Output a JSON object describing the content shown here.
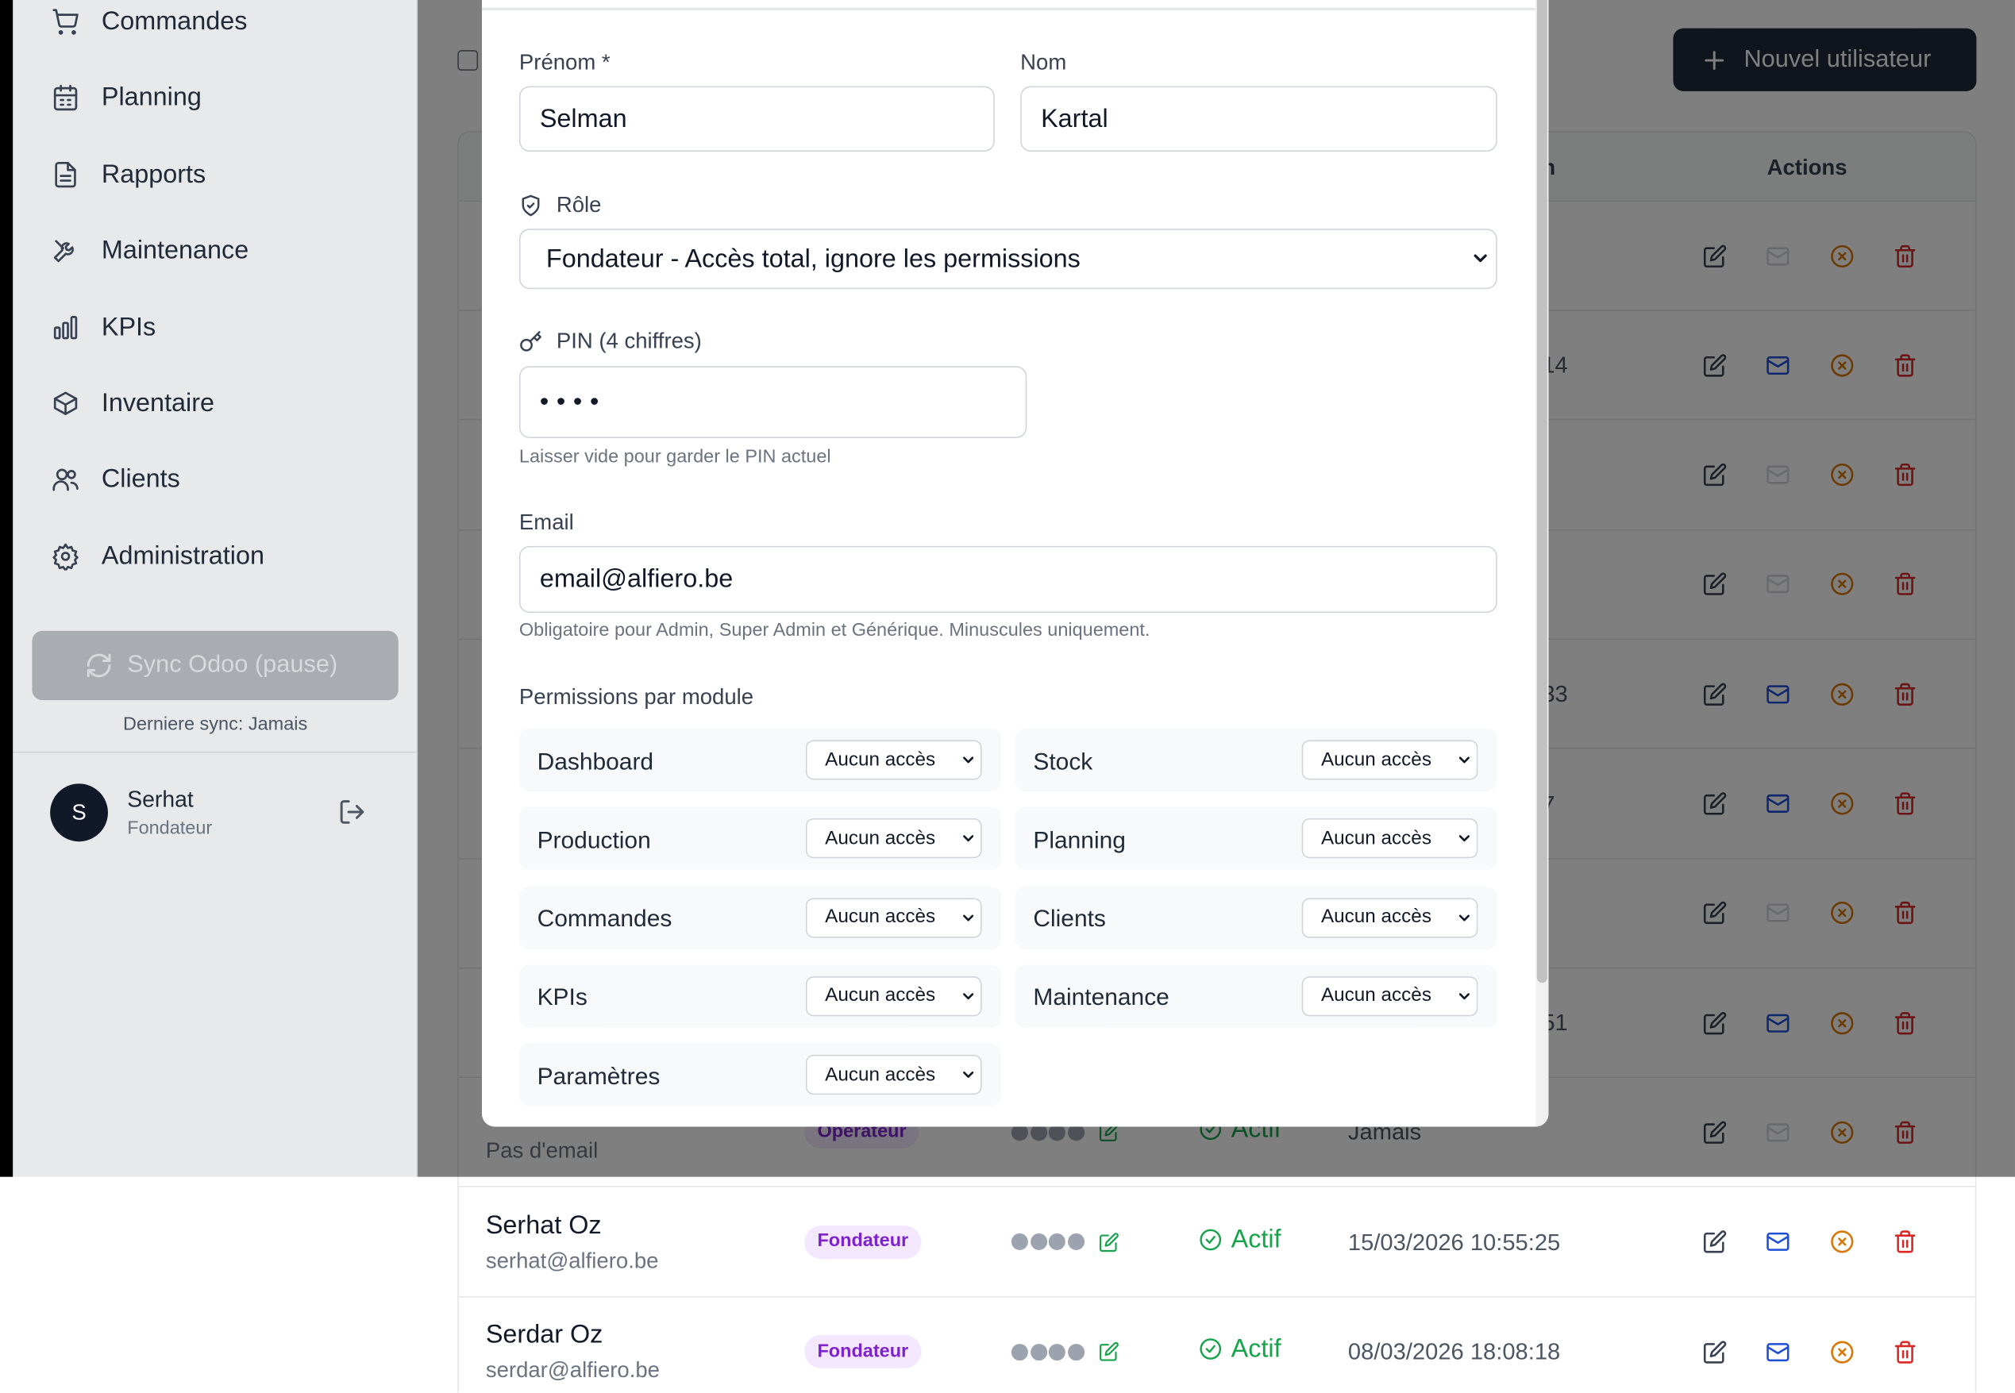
{
  "sidebar": {
    "nav": [
      "Commandes",
      "Planning",
      "Rapports",
      "Maintenance",
      "KPIs",
      "Inventaire",
      "Clients",
      "Administration"
    ],
    "sync_button": "Sync Odoo (pause)",
    "last_sync": "Derniere sync: Jamais",
    "user": {
      "initial": "S",
      "name": "Serhat",
      "role": "Fondateur"
    }
  },
  "toolbar": {
    "new_user_button": "Nouvel utilisateur"
  },
  "table": {
    "header_partial": "n",
    "actions_header": "Actions",
    "rows": [
      {},
      {
        "last_login": "14"
      },
      {},
      {},
      {
        "last_login": "33"
      },
      {
        "last_login": "7"
      },
      {},
      {
        "last_login": "51"
      },
      {
        "email": "Pas d'email",
        "role": "Opérateur",
        "status": "Actif",
        "last_login": "Jamais"
      },
      {
        "name": "Serhat Oz",
        "email": "serhat@alfiero.be",
        "role": "Fondateur",
        "status": "Actif",
        "last_login": "15/03/2026 10:55:25"
      },
      {
        "name": "Serdar Oz",
        "email": "serdar@alfiero.be",
        "role": "Fondateur",
        "status": "Actif",
        "last_login": "08/03/2026 18:08:18"
      }
    ]
  },
  "modal": {
    "first_name_label": "Prénom *",
    "first_name": "Selman",
    "last_name_label": "Nom",
    "last_name": "Kartal",
    "role_label": "Rôle",
    "role": "Fondateur - Accès total, ignore les permissions",
    "pin_label": "PIN (4 chiffres)",
    "pin": "••••",
    "pin_hint": "Laisser vide pour garder le PIN actuel",
    "email_label": "Email",
    "email": "email@alfiero.be",
    "email_hint": "Obligatoire pour Admin, Super Admin et Générique. Minuscules uniquement.",
    "permissions_title": "Permissions par module",
    "permissions": [
      {
        "module": "Dashboard",
        "access": "Aucun accès"
      },
      {
        "module": "Stock",
        "access": "Aucun accès"
      },
      {
        "module": "Production",
        "access": "Aucun accès"
      },
      {
        "module": "Planning",
        "access": "Aucun accès"
      },
      {
        "module": "Commandes",
        "access": "Aucun accès"
      },
      {
        "module": "Clients",
        "access": "Aucun accès"
      },
      {
        "module": "KPIs",
        "access": "Aucun accès"
      },
      {
        "module": "Maintenance",
        "access": "Aucun accès"
      },
      {
        "module": "Paramètres",
        "access": "Aucun accès"
      }
    ]
  }
}
